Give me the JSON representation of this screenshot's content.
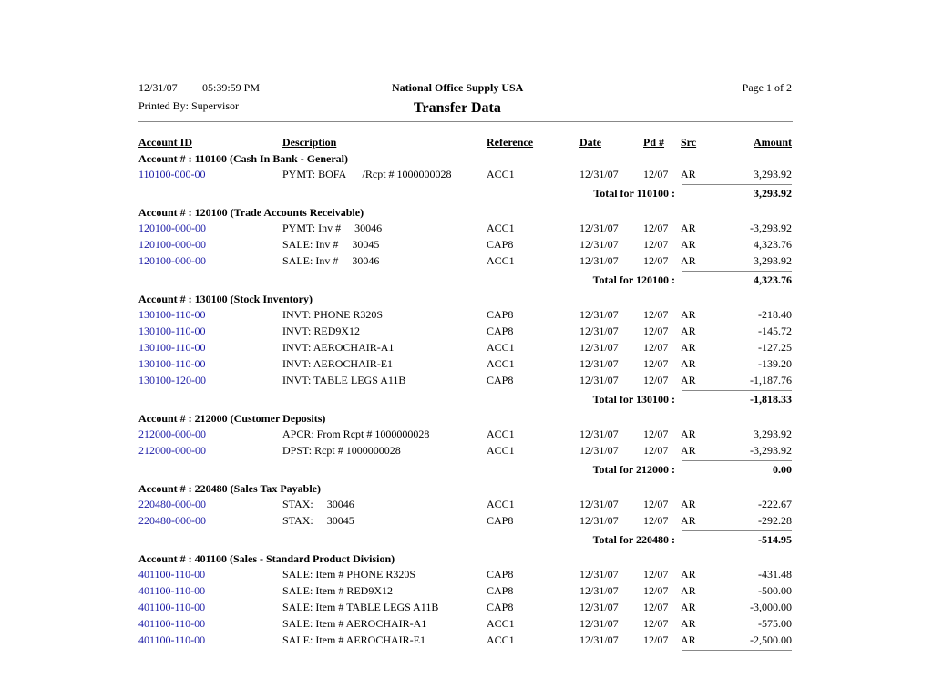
{
  "header": {
    "date": "12/31/07",
    "time": "05:39:59 PM",
    "company": "National Office Supply USA",
    "page": "Page 1 of 2",
    "printed_by": "Printed By: Supervisor",
    "title": "Transfer Data"
  },
  "columns": [
    "Account ID",
    "Description",
    "Reference",
    "Date",
    "Pd #",
    "Src",
    "Amount"
  ],
  "groups": [
    {
      "heading": "Account # : 110100 (Cash In Bank - General)",
      "rows": [
        [
          "110100-000-00",
          "PYMT: BOFA      /Rcpt # 1000000028",
          "ACC1",
          "12/31/07",
          "12/07",
          "AR",
          "3,293.92"
        ]
      ],
      "total_label": "Total for 110100 :",
      "total": "3,293.92"
    },
    {
      "heading": "Account # : 120100 (Trade Accounts Receivable)",
      "rows": [
        [
          "120100-000-00",
          "PYMT: Inv #     30046",
          "ACC1",
          "12/31/07",
          "12/07",
          "AR",
          "-3,293.92"
        ],
        [
          "120100-000-00",
          "SALE: Inv #     30045",
          "CAP8",
          "12/31/07",
          "12/07",
          "AR",
          "4,323.76"
        ],
        [
          "120100-000-00",
          "SALE: Inv #     30046",
          "ACC1",
          "12/31/07",
          "12/07",
          "AR",
          "3,293.92"
        ]
      ],
      "total_label": "Total for 120100 :",
      "total": "4,323.76"
    },
    {
      "heading": "Account # : 130100 (Stock Inventory)",
      "rows": [
        [
          "130100-110-00",
          "INVT: PHONE R320S",
          "CAP8",
          "12/31/07",
          "12/07",
          "AR",
          "-218.40"
        ],
        [
          "130100-110-00",
          "INVT: RED9X12",
          "CAP8",
          "12/31/07",
          "12/07",
          "AR",
          "-145.72"
        ],
        [
          "130100-110-00",
          "INVT: AEROCHAIR-A1",
          "ACC1",
          "12/31/07",
          "12/07",
          "AR",
          "-127.25"
        ],
        [
          "130100-110-00",
          "INVT: AEROCHAIR-E1",
          "ACC1",
          "12/31/07",
          "12/07",
          "AR",
          "-139.20"
        ],
        [
          "130100-120-00",
          "INVT: TABLE LEGS A11B",
          "CAP8",
          "12/31/07",
          "12/07",
          "AR",
          "-1,187.76"
        ]
      ],
      "total_label": "Total for 130100 :",
      "total": "-1,818.33"
    },
    {
      "heading": "Account # : 212000 (Customer Deposits)",
      "rows": [
        [
          "212000-000-00",
          "APCR: From Rcpt # 1000000028",
          "ACC1",
          "12/31/07",
          "12/07",
          "AR",
          "3,293.92"
        ],
        [
          "212000-000-00",
          "DPST: Rcpt # 1000000028",
          "ACC1",
          "12/31/07",
          "12/07",
          "AR",
          "-3,293.92"
        ]
      ],
      "total_label": "Total for 212000 :",
      "total": "0.00"
    },
    {
      "heading": "Account # : 220480 (Sales Tax Payable)",
      "rows": [
        [
          "220480-000-00",
          "STAX:     30046",
          "ACC1",
          "12/31/07",
          "12/07",
          "AR",
          "-222.67"
        ],
        [
          "220480-000-00",
          "STAX:     30045",
          "CAP8",
          "12/31/07",
          "12/07",
          "AR",
          "-292.28"
        ]
      ],
      "total_label": "Total for 220480 :",
      "total": "-514.95"
    },
    {
      "heading": "Account # : 401100 (Sales - Standard Product Division)",
      "rows": [
        [
          "401100-110-00",
          "SALE: Item # PHONE R320S",
          "CAP8",
          "12/31/07",
          "12/07",
          "AR",
          "-431.48"
        ],
        [
          "401100-110-00",
          "SALE: Item # RED9X12",
          "CAP8",
          "12/31/07",
          "12/07",
          "AR",
          "-500.00"
        ],
        [
          "401100-110-00",
          "SALE: Item # TABLE LEGS A11B",
          "CAP8",
          "12/31/07",
          "12/07",
          "AR",
          "-3,000.00"
        ],
        [
          "401100-110-00",
          "SALE: Item # AEROCHAIR-A1",
          "ACC1",
          "12/31/07",
          "12/07",
          "AR",
          "-575.00"
        ],
        [
          "401100-110-00",
          "SALE: Item # AEROCHAIR-E1",
          "ACC1",
          "12/31/07",
          "12/07",
          "AR",
          "-2,500.00"
        ]
      ]
    }
  ]
}
